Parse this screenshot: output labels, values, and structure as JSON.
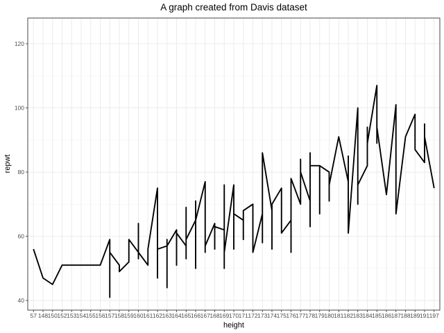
{
  "chart_data": {
    "type": "line",
    "title": "A graph created from Davis dataset",
    "xlabel": "height",
    "ylabel": "repwt",
    "ylim": [
      37,
      128
    ],
    "y_ticks": [
      40,
      60,
      80,
      100,
      120
    ],
    "grid": true,
    "categories": [
      "57",
      "148",
      "150",
      "152",
      "153",
      "154",
      "155",
      "156",
      "157",
      "158",
      "159",
      "160",
      "161",
      "162",
      "163",
      "164",
      "165",
      "166",
      "167",
      "168",
      "169",
      "170",
      "171",
      "172",
      "173",
      "174",
      "175",
      "176",
      "177",
      "178",
      "179",
      "180",
      "181",
      "182",
      "183",
      "184",
      "185",
      "186",
      "187",
      "188",
      "189",
      "191",
      "197"
    ],
    "series": [
      {
        "points": [
          [
            "57",
            56
          ],
          [
            "148",
            47
          ],
          [
            "150",
            45
          ],
          [
            "152",
            51
          ],
          [
            "156",
            51
          ],
          [
            "157",
            59
          ],
          [
            "157",
            41
          ],
          [
            "157",
            55
          ],
          [
            "158",
            51
          ],
          [
            "158",
            49
          ],
          [
            "159",
            52
          ],
          [
            "159",
            59
          ],
          [
            "160",
            55
          ],
          [
            "160",
            53
          ],
          [
            "160",
            64
          ],
          [
            "160",
            55
          ],
          [
            "161",
            51
          ],
          [
            "161",
            56
          ],
          [
            "162",
            75
          ],
          [
            "162",
            47
          ],
          [
            "162",
            56
          ],
          [
            "163",
            57
          ],
          [
            "163",
            59
          ],
          [
            "163",
            44
          ],
          [
            "163",
            57
          ],
          [
            "164",
            62
          ],
          [
            "164",
            51
          ],
          [
            "164",
            61
          ],
          [
            "165",
            57
          ],
          [
            "165",
            53
          ],
          [
            "165",
            69
          ],
          [
            "165",
            59
          ],
          [
            "166",
            65
          ],
          [
            "166",
            71
          ],
          [
            "166",
            50
          ],
          [
            "166",
            65
          ],
          [
            "167",
            77
          ],
          [
            "167",
            55
          ],
          [
            "167",
            57
          ],
          [
            "168",
            64
          ],
          [
            "168",
            56
          ],
          [
            "168",
            63
          ],
          [
            "169",
            62
          ],
          [
            "169",
            76
          ],
          [
            "169",
            50
          ],
          [
            "169",
            55
          ],
          [
            "170",
            76
          ],
          [
            "170",
            56
          ],
          [
            "170",
            67
          ],
          [
            "171",
            65
          ],
          [
            "171",
            59
          ],
          [
            "171",
            66
          ],
          [
            "171",
            68
          ],
          [
            "172",
            70
          ],
          [
            "172",
            55
          ],
          [
            "173",
            67
          ],
          [
            "173",
            58
          ],
          [
            "173",
            86
          ],
          [
            "174",
            68
          ],
          [
            "174",
            56
          ],
          [
            "174",
            70
          ],
          [
            "175",
            75
          ],
          [
            "175",
            61
          ],
          [
            "176",
            65
          ],
          [
            "176",
            55
          ],
          [
            "176",
            78
          ],
          [
            "177",
            70
          ],
          [
            "177",
            84
          ],
          [
            "177",
            80
          ],
          [
            "178",
            71
          ],
          [
            "178",
            86
          ],
          [
            "178",
            63
          ],
          [
            "178",
            82
          ],
          [
            "179",
            82
          ],
          [
            "179",
            67
          ],
          [
            "179",
            82
          ],
          [
            "180",
            80
          ],
          [
            "180",
            71
          ],
          [
            "180",
            76
          ],
          [
            "181",
            91
          ],
          [
            "182",
            77
          ],
          [
            "182",
            85
          ],
          [
            "182",
            61
          ],
          [
            "183",
            100
          ],
          [
            "183",
            70
          ],
          [
            "183",
            76
          ],
          [
            "184",
            82
          ],
          [
            "184",
            94
          ],
          [
            "184",
            83
          ],
          [
            "184",
            89
          ],
          [
            "185",
            107
          ],
          [
            "185",
            89
          ],
          [
            "185",
            94
          ],
          [
            "186",
            73
          ],
          [
            "187",
            101
          ],
          [
            "187",
            67
          ],
          [
            "188",
            91
          ],
          [
            "189",
            98
          ],
          [
            "189",
            87
          ],
          [
            "191",
            83
          ],
          [
            "191",
            95
          ],
          [
            "191",
            91
          ],
          [
            "197",
            75
          ]
        ]
      }
    ]
  }
}
